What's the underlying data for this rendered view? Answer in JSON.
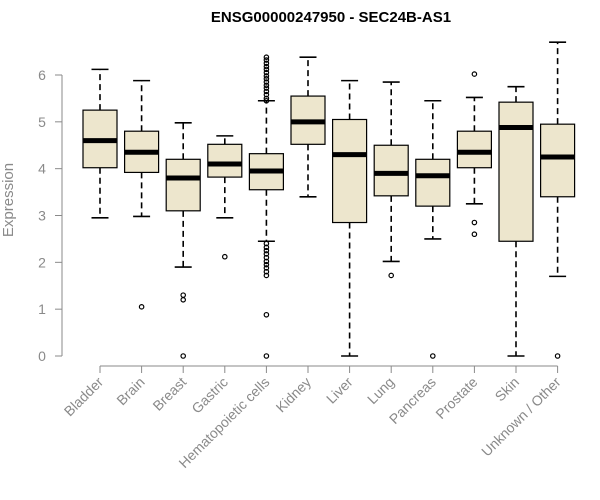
{
  "chart_data": {
    "type": "boxplot",
    "title": "ENSG00000247950 - SEC24B-AS1",
    "ylabel": "Expression",
    "xlabel": "",
    "ylim": [
      0,
      6.7
    ],
    "yticks": [
      0,
      1,
      2,
      3,
      4,
      5,
      6
    ],
    "box_color": "#ede6cd",
    "categories": [
      "Bladder",
      "Brain",
      "Breast",
      "Gastric",
      "Hematopoietic cells",
      "Kidney",
      "Liver",
      "Lung",
      "Pancreas",
      "Prostate",
      "Skin",
      "Unknown / Other"
    ],
    "boxes": [
      {
        "whisker_low": 2.95,
        "q1": 4.02,
        "median": 4.6,
        "q3": 5.25,
        "whisker_high": 6.12,
        "outliers": []
      },
      {
        "whisker_low": 2.98,
        "q1": 3.92,
        "median": 4.35,
        "q3": 4.8,
        "whisker_high": 5.88,
        "outliers": [
          1.05
        ]
      },
      {
        "whisker_low": 1.9,
        "q1": 3.1,
        "median": 3.8,
        "q3": 4.2,
        "whisker_high": 4.98,
        "outliers": [
          1.3,
          1.2,
          0.0
        ]
      },
      {
        "whisker_low": 2.95,
        "q1": 3.82,
        "median": 4.1,
        "q3": 4.52,
        "whisker_high": 4.7,
        "outliers": [
          2.12
        ]
      },
      {
        "whisker_low": 2.45,
        "q1": 3.55,
        "median": 3.95,
        "q3": 4.32,
        "whisker_high": 5.45,
        "outliers": [
          6.38,
          6.32,
          6.25,
          6.18,
          6.12,
          6.05,
          5.98,
          5.92,
          5.85,
          5.78,
          5.72,
          5.65,
          5.58,
          5.5,
          5.45,
          2.4,
          2.32,
          2.25,
          2.18,
          2.1,
          2.02,
          1.95,
          1.88,
          1.8,
          1.72,
          0.88,
          0.0
        ]
      },
      {
        "whisker_low": 3.4,
        "q1": 4.52,
        "median": 5.0,
        "q3": 5.55,
        "whisker_high": 6.38,
        "outliers": []
      },
      {
        "whisker_low": 0.0,
        "q1": 2.85,
        "median": 4.3,
        "q3": 5.05,
        "whisker_high": 5.88,
        "outliers": []
      },
      {
        "whisker_low": 2.02,
        "q1": 3.42,
        "median": 3.9,
        "q3": 4.5,
        "whisker_high": 5.85,
        "outliers": [
          1.72
        ]
      },
      {
        "whisker_low": 2.5,
        "q1": 3.2,
        "median": 3.85,
        "q3": 4.2,
        "whisker_high": 5.45,
        "outliers": [
          0.0
        ]
      },
      {
        "whisker_low": 3.25,
        "q1": 4.02,
        "median": 4.35,
        "q3": 4.8,
        "whisker_high": 5.52,
        "outliers": [
          6.02,
          2.85,
          2.6
        ]
      },
      {
        "whisker_low": 0.0,
        "q1": 2.45,
        "median": 4.88,
        "q3": 5.42,
        "whisker_high": 5.75,
        "outliers": []
      },
      {
        "whisker_low": 1.7,
        "q1": 3.4,
        "median": 4.25,
        "q3": 4.95,
        "whisker_high": 6.7,
        "outliers": [
          0.0
        ]
      }
    ]
  }
}
